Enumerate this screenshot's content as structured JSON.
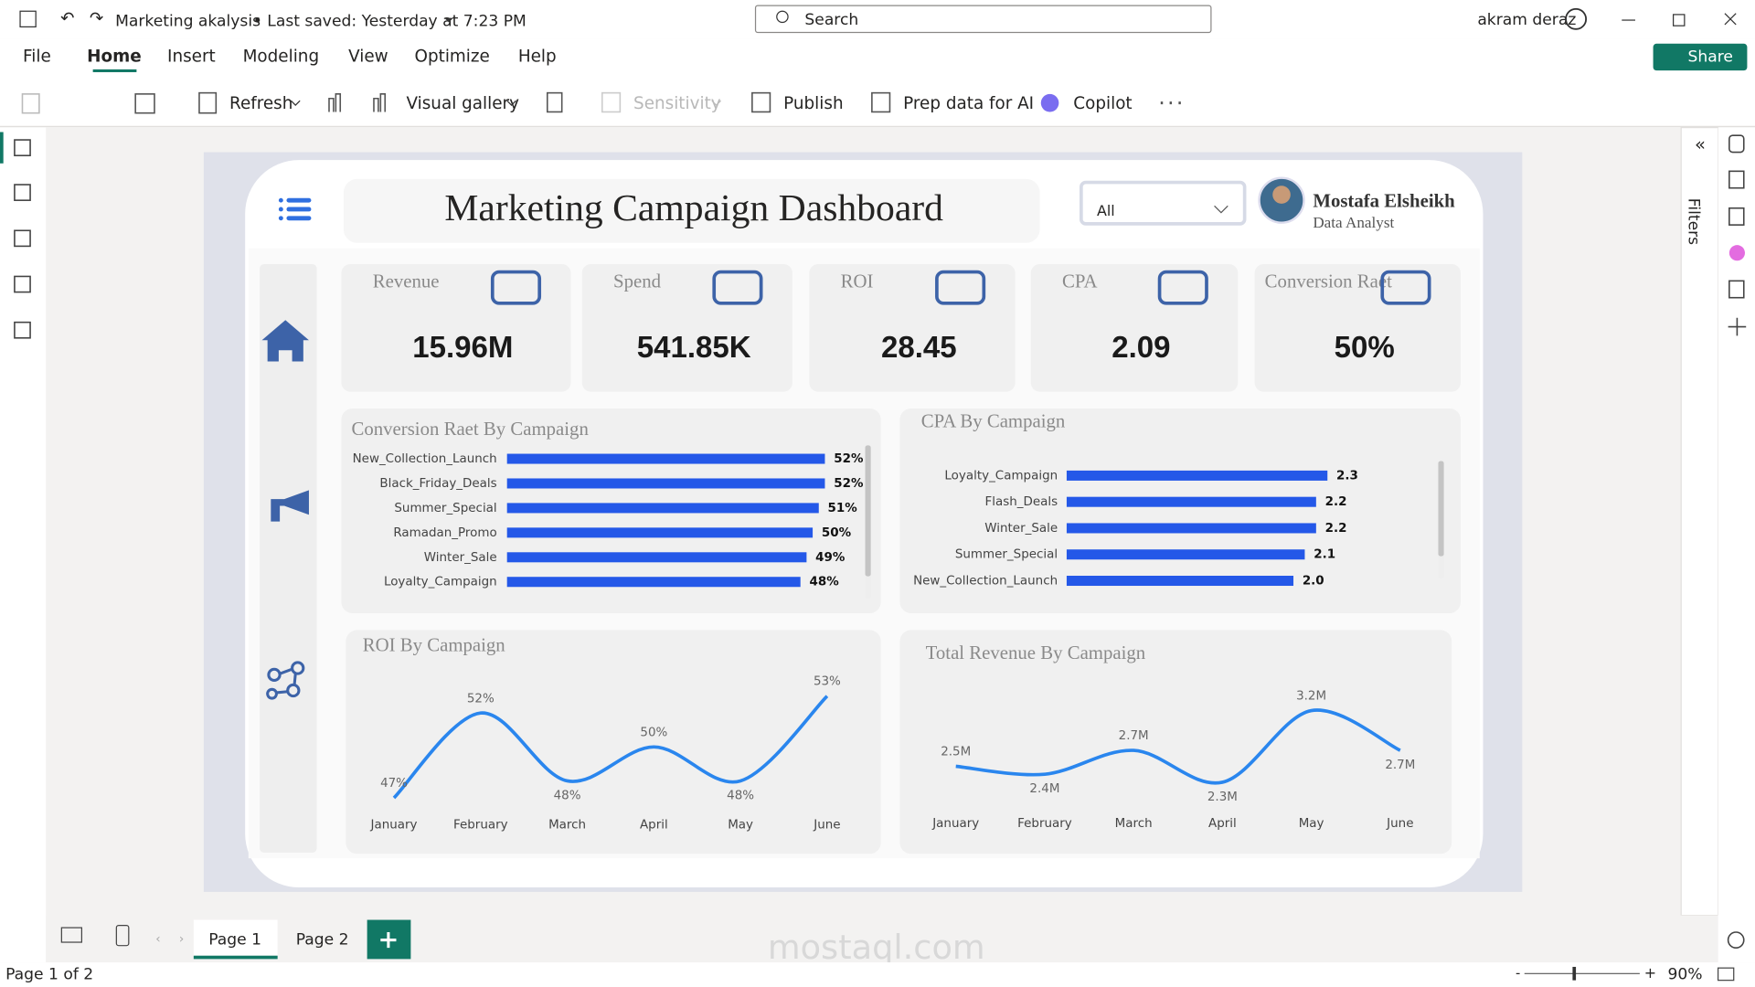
{
  "title_bar": {
    "file_name": "Marketing akalysis",
    "saved": "• Last saved: Yesterday at 7:23 PM",
    "search": "Search",
    "user": "akram deraz"
  },
  "menu": {
    "tabs": [
      "File",
      "Home",
      "Insert",
      "Modeling",
      "View",
      "Optimize",
      "Help"
    ],
    "share": "Share"
  },
  "ribbon": {
    "buttons": [
      "Refresh",
      "Visual gallery",
      "Sensitivity",
      "Publish",
      "Prep data for AI",
      "Copilot"
    ]
  },
  "filters_pane": {
    "label": "Filters"
  },
  "report": {
    "title": "Marketing Campaign Dashboard",
    "slicer": "All",
    "profile": {
      "name": "Mostafa Elsheikh",
      "role": "Data Analyst"
    },
    "kpis": [
      {
        "label": "Revenue",
        "value": "15.96M"
      },
      {
        "label": "Spend",
        "value": "541.85K"
      },
      {
        "label": "ROI",
        "value": "28.45"
      },
      {
        "label": "CPA",
        "value": "2.09"
      },
      {
        "label": "Conversion Raet",
        "value": "50%"
      }
    ],
    "charts": [
      {
        "type": "bar",
        "title": "Conversion Raet By Campaign",
        "categories": [
          "New_Collection_Launch",
          "Black_Friday_Deals",
          "Summer_Special",
          "Ramadan_Promo",
          "Winter_Sale",
          "Loyalty_Campaign"
        ],
        "values": [
          52,
          52,
          51,
          50,
          49,
          48
        ],
        "value_labels": [
          "52%",
          "52%",
          "51%",
          "50%",
          "49%",
          "48%"
        ],
        "color": "#2458e8"
      },
      {
        "type": "bar",
        "title": "CPA By Campaign",
        "categories": [
          "Loyalty_Campaign",
          "Flash_Deals",
          "Winter_Sale",
          "Summer_Special",
          "New_Collection_Launch"
        ],
        "values": [
          2.3,
          2.2,
          2.2,
          2.1,
          2.0
        ],
        "value_labels": [
          "2.3",
          "2.2",
          "2.2",
          "2.1",
          "2.0"
        ],
        "color": "#2458e8"
      },
      {
        "type": "line",
        "title": "ROI By Campaign",
        "categories": [
          "January",
          "February",
          "March",
          "April",
          "May",
          "June"
        ],
        "values": [
          47,
          52,
          48,
          50,
          48,
          53
        ],
        "value_labels": [
          "47%",
          "52%",
          "48%",
          "50%",
          "48%",
          "53%"
        ],
        "color": "#2a86ee"
      },
      {
        "type": "line",
        "title": "Total Revenue By Campaign",
        "categories": [
          "January",
          "February",
          "March",
          "April",
          "May",
          "June"
        ],
        "values": [
          2500000,
          2400000,
          2700000,
          2300000,
          3200000,
          2700000
        ],
        "value_labels": [
          "2.5M",
          "2.4M",
          "2.7M",
          "2.3M",
          "3.2M",
          "2.7M"
        ],
        "color": "#2a86ee"
      }
    ]
  },
  "page_tabs": [
    "Page 1",
    "Page 2"
  ],
  "status_bar": {
    "page": "Page 1 of 2",
    "zoom": "90%"
  },
  "watermark": "mostaql.com"
}
